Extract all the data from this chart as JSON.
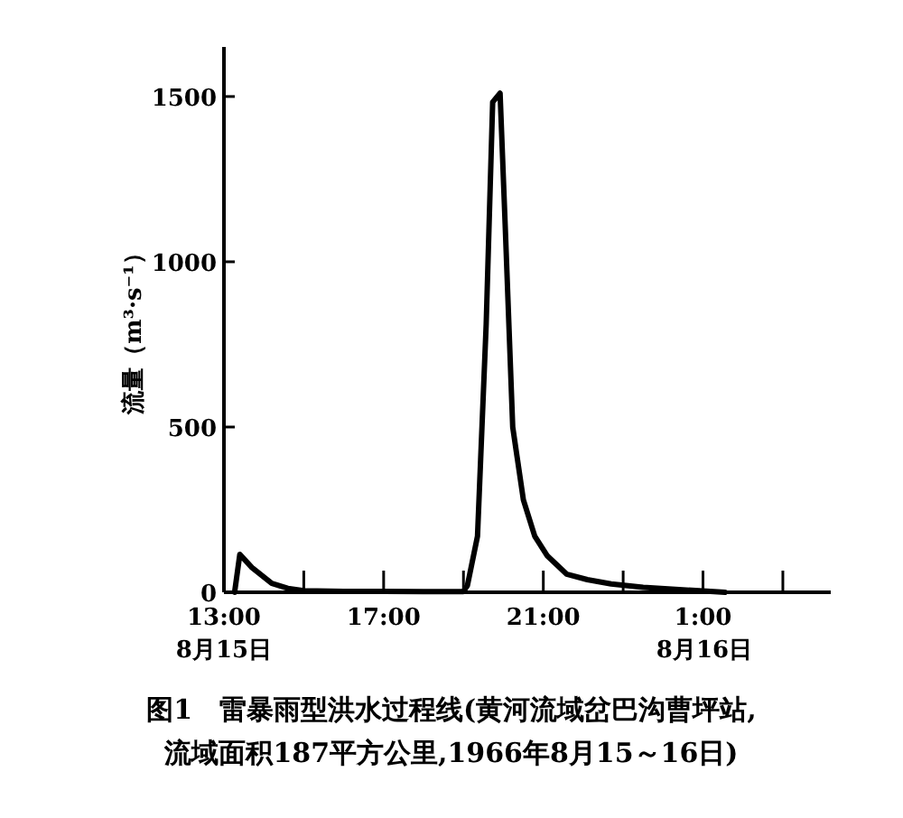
{
  "chart_data": {
    "type": "line",
    "title": "图1　雷暴雨型洪水过程线(黄河流域岔巴沟曹坪站,\n流域面积187平方公里,1966年8月15～16日)",
    "ylabel": "流量（m³·s⁻¹）",
    "x": [
      "1966-08-15T13:16",
      "1966-08-15T13:24",
      "1966-08-15T13:42",
      "1966-08-15T14:12",
      "1966-08-15T14:36",
      "1966-08-15T15:00",
      "1966-08-15T16:00",
      "1966-08-15T17:00",
      "1966-08-15T18:00",
      "1966-08-15T19:00",
      "1966-08-15T19:06",
      "1966-08-15T19:21",
      "1966-08-15T19:34",
      "1966-08-15T19:44",
      "1966-08-15T19:55",
      "1966-08-15T20:03",
      "1966-08-15T20:14",
      "1966-08-15T20:30",
      "1966-08-15T20:47",
      "1966-08-15T21:06",
      "1966-08-15T21:35",
      "1966-08-15T22:06",
      "1966-08-15T22:42",
      "1966-08-15T23:30",
      "1966-08-16T00:24",
      "1966-08-16T01:00",
      "1966-08-16T01:33"
    ],
    "series": [
      {
        "color": "#000000",
        "values": [
          0,
          115,
          75,
          27,
          12,
          5,
          3,
          3,
          2,
          2,
          20,
          170,
          810,
          1483,
          1510,
          1100,
          500,
          280,
          170,
          110,
          55,
          38,
          25,
          15,
          8,
          4,
          0
        ]
      }
    ],
    "xlim": [
      "1966-08-15T13:00",
      "1966-08-16T04:12"
    ],
    "ylim": [
      0,
      1650
    ],
    "xticks": [
      {
        "value": "1966-08-15T13:00",
        "label": "13:00"
      },
      {
        "value": "1966-08-15T15:00",
        "label": null
      },
      {
        "value": "1966-08-15T17:00",
        "label": "17:00"
      },
      {
        "value": "1966-08-15T19:00",
        "label": null
      },
      {
        "value": "1966-08-15T21:00",
        "label": "21:00"
      },
      {
        "value": "1966-08-15T23:00",
        "label": null
      },
      {
        "value": "1966-08-16T01:00",
        "label": "1:00"
      },
      {
        "value": "1966-08-16T03:00",
        "label": null
      }
    ],
    "yticks": [
      0,
      500,
      1000,
      1500
    ],
    "annotations": [
      "8月15日",
      "8月16日"
    ]
  }
}
